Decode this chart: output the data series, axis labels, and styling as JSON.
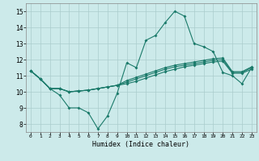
{
  "background_color": "#cceaea",
  "grid_color": "#aacccc",
  "line_color": "#1a7a6a",
  "xlabel": "Humidex (Indice chaleur)",
  "xlim": [
    -0.5,
    23.5
  ],
  "ylim": [
    7.5,
    15.5
  ],
  "xticks": [
    0,
    1,
    2,
    3,
    4,
    5,
    6,
    7,
    8,
    9,
    10,
    11,
    12,
    13,
    14,
    15,
    16,
    17,
    18,
    19,
    20,
    21,
    22,
    23
  ],
  "yticks": [
    8,
    9,
    10,
    11,
    12,
    13,
    14,
    15
  ],
  "series": [
    [
      11.3,
      10.8,
      10.2,
      9.8,
      9.0,
      9.0,
      8.7,
      7.7,
      8.5,
      9.9,
      11.8,
      11.5,
      13.2,
      13.5,
      14.3,
      15.0,
      14.7,
      13.0,
      12.8,
      12.5,
      11.2,
      11.0,
      10.5,
      11.5
    ],
    [
      11.3,
      10.8,
      10.2,
      10.2,
      10.0,
      10.05,
      10.1,
      10.2,
      10.3,
      10.4,
      10.5,
      10.65,
      10.85,
      11.05,
      11.25,
      11.4,
      11.55,
      11.65,
      11.75,
      11.85,
      11.9,
      11.15,
      11.15,
      11.4
    ],
    [
      11.3,
      10.8,
      10.2,
      10.2,
      10.0,
      10.05,
      10.1,
      10.2,
      10.3,
      10.4,
      10.6,
      10.8,
      11.0,
      11.2,
      11.4,
      11.55,
      11.65,
      11.75,
      11.85,
      11.95,
      12.0,
      11.2,
      11.2,
      11.5
    ],
    [
      11.3,
      10.8,
      10.2,
      10.2,
      10.0,
      10.05,
      10.1,
      10.2,
      10.3,
      10.4,
      10.7,
      10.9,
      11.1,
      11.3,
      11.5,
      11.65,
      11.75,
      11.85,
      11.95,
      12.05,
      12.1,
      11.25,
      11.25,
      11.55
    ]
  ]
}
